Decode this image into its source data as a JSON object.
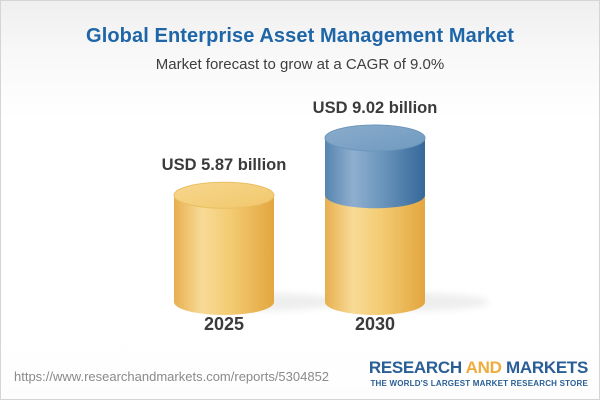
{
  "header": {
    "title": "Global Enterprise Asset Management Market",
    "subtitle": "Market forecast to grow at a CAGR of 9.0%"
  },
  "chart_data": {
    "type": "bar",
    "style": "3d-cylinder",
    "title": "Global Enterprise Asset Management Market",
    "subtitle": "Market forecast to grow at a CAGR of 9.0%",
    "categories": [
      "2025",
      "2030"
    ],
    "values": [
      5.87,
      9.02
    ],
    "value_labels": [
      "USD 5.87 billion",
      "USD 9.02 billion"
    ],
    "unit": "USD billion",
    "cagr_percent": 9.0,
    "ylim": [
      0,
      9.02
    ],
    "grid": false,
    "legend": false,
    "segment_note": "2030 cylinder shows gold base equal to 2025 value (5.87) with blue top segment representing growth to 9.02",
    "colors": {
      "gold": "#F2C76E",
      "gold_edge": "#E3A63F",
      "blue": "#6D97BE",
      "blue_edge": "#35689A",
      "label_text": "#3B3B3B",
      "title_blue": "#1E66A8"
    }
  },
  "footer": {
    "url": "https://www.researchandmarkets.com/reports/5304852",
    "logo": {
      "part1": "RESEARCH",
      "part2": "AND",
      "part3": "MARKETS",
      "tagline": "THE WORLD'S LARGEST MARKET RESEARCH STORE"
    },
    "colors": {
      "logo_blue": "#295F96",
      "logo_gold": "#F0AC3B"
    }
  }
}
